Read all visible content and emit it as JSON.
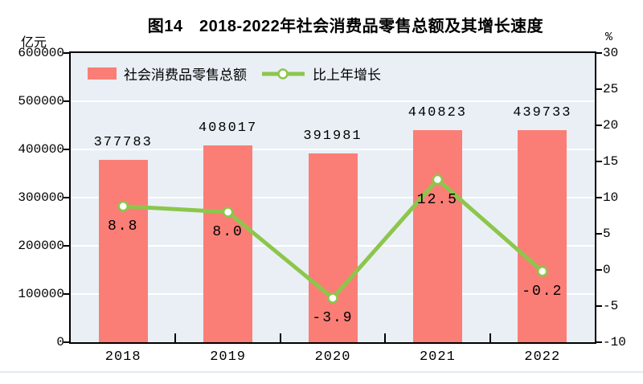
{
  "title": "图14　2018-2022年社会消费品零售总额及其增长速度",
  "chart_data": {
    "type": "combo-bar-line",
    "categories": [
      "2018",
      "2019",
      "2020",
      "2021",
      "2022"
    ],
    "series": [
      {
        "name": "社会消费品零售总额",
        "type": "bar",
        "axis": "left",
        "values": [
          377783,
          408017,
          391981,
          440823,
          439733
        ],
        "labels": [
          "377783",
          "408017",
          "391981",
          "440823",
          "439733"
        ],
        "color": "#FA7E76"
      },
      {
        "name": "比上年增长",
        "type": "line",
        "axis": "right",
        "values": [
          8.8,
          8.0,
          -3.9,
          12.5,
          -0.2
        ],
        "labels": [
          "8.8",
          "8.0",
          "-3.9",
          "12.5",
          "-0.2"
        ],
        "color": "#8CC64B",
        "marker": {
          "fill": "#FFFFFF",
          "stroke": "#8CC64B"
        }
      }
    ],
    "left_axis": {
      "unit_label": "亿元",
      "min": 0,
      "max": 600000,
      "step": 100000
    },
    "right_axis": {
      "unit_label": "%",
      "min": -10,
      "max": 30,
      "step": 5
    },
    "grid": "horizontal-white-at-left-axis-ticks",
    "legend_position": "top-left-inside",
    "colors": {
      "plot_background": "#E9EFF5",
      "gridline": "#FFFFFF",
      "frame": "#000000",
      "label_text": "#000000",
      "page_rule": "#E2EAF1"
    }
  }
}
